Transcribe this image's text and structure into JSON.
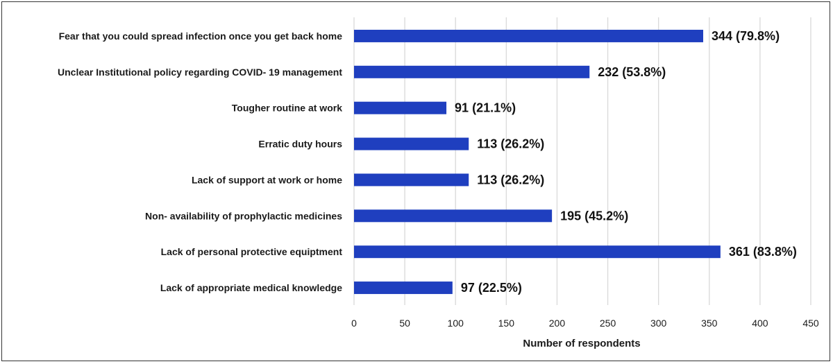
{
  "chart_data": {
    "type": "bar",
    "orientation": "horizontal",
    "categories": [
      "Fear that you could spread infection once you get back home",
      "Unclear Institutional policy regarding COVID- 19 management",
      "Tougher routine at work",
      "Erratic duty hours",
      "Lack of support at work or home",
      "Non- availability of prophylactic medicines",
      "Lack of personal protective equiptment",
      "Lack of appropriate medical knowledge"
    ],
    "values": [
      344,
      232,
      91,
      113,
      113,
      195,
      361,
      97
    ],
    "data_labels": [
      "344 (79.8%)",
      "232 (53.8%)",
      "91 (21.1%)",
      "113 (26.2%)",
      "113 (26.2%)",
      "195 (45.2%)",
      "361 (83.8%)",
      "97 (22.5%)"
    ],
    "xlabel": "Number of respondents",
    "ylabel": "",
    "xlim": [
      0,
      450
    ],
    "xticks": [
      0,
      50,
      100,
      150,
      200,
      250,
      300,
      350,
      400,
      450
    ],
    "grid": "vertical",
    "legend": "none",
    "bar_color": "#1f3fbf",
    "grid_color": "#d9d9d9"
  }
}
